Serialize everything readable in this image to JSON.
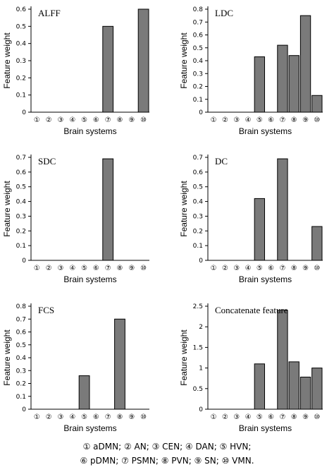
{
  "chart_data": [
    {
      "type": "bar",
      "title": "ALFF",
      "xlabel": "Brain systems",
      "ylabel": "Feature weight",
      "categories": [
        "①",
        "②",
        "③",
        "④",
        "⑤",
        "⑥",
        "⑦",
        "⑧",
        "⑨",
        "⑩"
      ],
      "values": [
        0,
        0,
        0,
        0,
        0,
        0,
        0.5,
        0,
        0,
        0.63
      ],
      "ylim": [
        0,
        0.6
      ],
      "yticks": [
        "0",
        "0.1",
        "0.2",
        "0.3",
        "0.4",
        "0.5",
        "0.6"
      ]
    },
    {
      "type": "bar",
      "title": "LDC",
      "xlabel": "Brain systems",
      "ylabel": "Feature weight",
      "categories": [
        "①",
        "②",
        "③",
        "④",
        "⑤",
        "⑥",
        "⑦",
        "⑧",
        "⑨",
        "⑩"
      ],
      "values": [
        0,
        0,
        0,
        0,
        0.43,
        0,
        0.52,
        0.44,
        0.75,
        0.13
      ],
      "ylim": [
        0,
        0.8
      ],
      "yticks": [
        "0",
        "0.1",
        "0.2",
        "0.3",
        "0.4",
        "0.5",
        "0.6",
        "0.7",
        "0.8"
      ]
    },
    {
      "type": "bar",
      "title": "SDC",
      "xlabel": "Brain systems",
      "ylabel": "Feature weight",
      "categories": [
        "①",
        "②",
        "③",
        "④",
        "⑤",
        "⑥",
        "⑦",
        "⑧",
        "⑨",
        "⑩"
      ],
      "values": [
        0,
        0,
        0,
        0,
        0,
        0,
        0.69,
        0,
        0,
        0
      ],
      "ylim": [
        0,
        0.7
      ],
      "yticks": [
        "0",
        "0.1",
        "0.2",
        "0.3",
        "0.4",
        "0.5",
        "0.6",
        "0.7"
      ]
    },
    {
      "type": "bar",
      "title": "DC",
      "xlabel": "Brain systems",
      "ylabel": "Feature weight",
      "categories": [
        "①",
        "②",
        "③",
        "④",
        "⑤",
        "⑥",
        "⑦",
        "⑧",
        "⑨",
        "⑩"
      ],
      "values": [
        0,
        0,
        0,
        0,
        0.42,
        0,
        0.69,
        0,
        0,
        0.23
      ],
      "ylim": [
        0,
        0.7
      ],
      "yticks": [
        "0",
        "0.1",
        "0.2",
        "0.3",
        "0.4",
        "0.5",
        "0.6",
        "0.7"
      ]
    },
    {
      "type": "bar",
      "title": "FCS",
      "xlabel": "Brain systems",
      "ylabel": "Feature weight",
      "categories": [
        "①",
        "②",
        "③",
        "④",
        "⑤",
        "⑥",
        "⑦",
        "⑧",
        "⑨",
        "⑩"
      ],
      "values": [
        0,
        0,
        0,
        0,
        0.26,
        0,
        0,
        0.7,
        0,
        0
      ],
      "ylim": [
        0,
        0.8
      ],
      "yticks": [
        "0",
        "0.1",
        "0.2",
        "0.3",
        "0.4",
        "0.5",
        "0.6",
        "0.7",
        "0.8"
      ]
    },
    {
      "type": "bar",
      "title": "Concatenate feature",
      "xlabel": "Brain systems",
      "ylabel": "Feature weight",
      "categories": [
        "①",
        "②",
        "③",
        "④",
        "⑤",
        "⑥",
        "⑦",
        "⑧",
        "⑨",
        "⑩"
      ],
      "values": [
        0,
        0,
        0,
        0,
        1.1,
        0,
        2.4,
        1.15,
        0.78,
        1.0
      ],
      "ylim": [
        0,
        2.5
      ],
      "yticks": [
        "0",
        "0.5",
        "1",
        "1.5",
        "2",
        "2.5"
      ]
    }
  ],
  "legend": {
    "line1": "① aDMN; ② AN; ③ CEN; ④ DAN; ⑤ HVN;",
    "line2": "⑥ pDMN; ⑦ PSMN; ⑧ PVN; ⑨ SN; ⑩ VMN."
  }
}
